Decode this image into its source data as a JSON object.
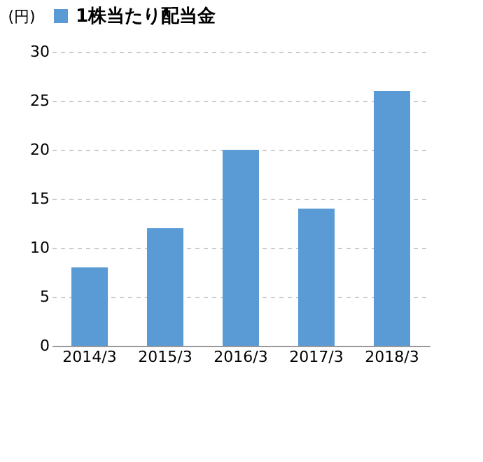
{
  "chart_data": {
    "type": "bar",
    "categories": [
      "2014/3",
      "2015/3",
      "2016/3",
      "2017/3",
      "2018/3"
    ],
    "series": [
      {
        "name": "1株当たり配当金",
        "color": "#5b9bd5",
        "values": [
          8,
          12,
          20,
          14,
          26
        ]
      }
    ],
    "ylabel": "(円)",
    "ylim": [
      0,
      30
    ],
    "yticks": [
      0,
      5,
      10,
      15,
      20,
      25,
      30
    ],
    "grid": "y",
    "legend": "top"
  }
}
